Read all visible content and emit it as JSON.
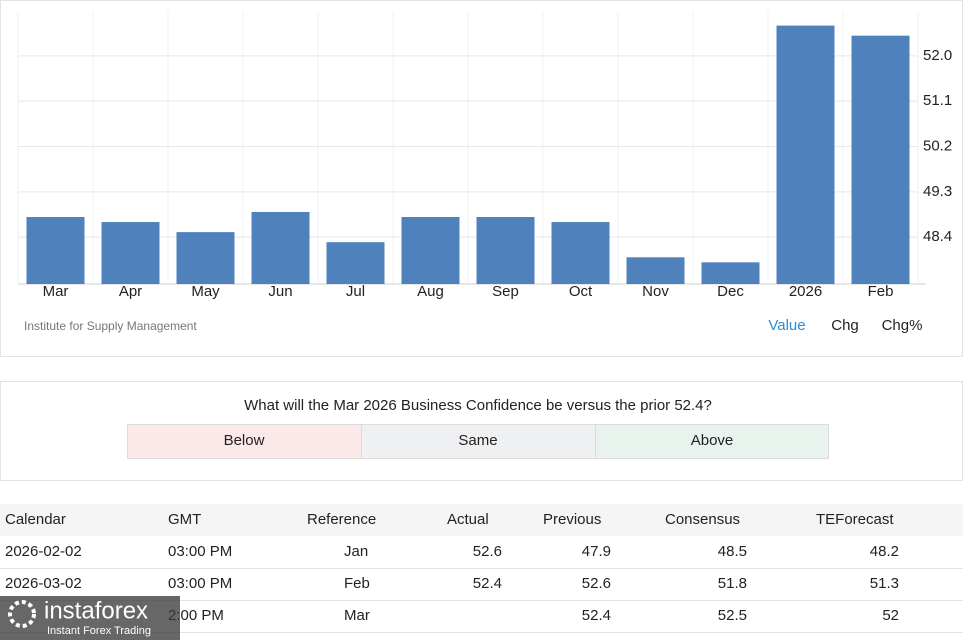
{
  "chart_data": {
    "type": "bar",
    "categories": [
      "Mar",
      "Apr",
      "May",
      "Jun",
      "Jul",
      "Aug",
      "Sep",
      "Oct",
      "Nov",
      "Dec",
      "2026",
      "Feb"
    ],
    "values": [
      48.8,
      48.7,
      48.5,
      48.9,
      48.3,
      48.8,
      48.8,
      48.7,
      48.0,
      47.9,
      52.6,
      52.4
    ],
    "color": "#4f81bd",
    "ylim": [
      47.47,
      52.87
    ],
    "yticks": [
      48.4,
      49.3,
      50.2,
      51.1,
      {
        "value": 52,
        "label": "52.0"
      }
    ],
    "grid": true,
    "source": "Institute for Supply Management",
    "view_options": [
      "Value",
      "Chg",
      "Chg%"
    ]
  },
  "poll": {
    "question": "What will the Mar 2026 Business Confidence be versus the prior 52.4?",
    "options": [
      "Below",
      "Same",
      "Above"
    ]
  },
  "table": {
    "headers": [
      "Calendar",
      "GMT",
      "Reference",
      "Actual",
      "Previous",
      "Consensus",
      "TEForecast"
    ],
    "rows": [
      [
        "2026-02-02",
        "03:00 PM",
        "Jan",
        "52.6",
        "47.9",
        "48.5",
        "48.2"
      ],
      [
        "2026-03-02",
        "03:00 PM",
        "Feb",
        "52.4",
        "52.6",
        "51.8",
        "51.3"
      ],
      [
        null,
        "2:00 PM",
        "Mar",
        null,
        "52.4",
        "52.5",
        "52"
      ]
    ]
  },
  "watermark": {
    "brand": "instaforex",
    "tagline": "Instant Forex Trading"
  }
}
